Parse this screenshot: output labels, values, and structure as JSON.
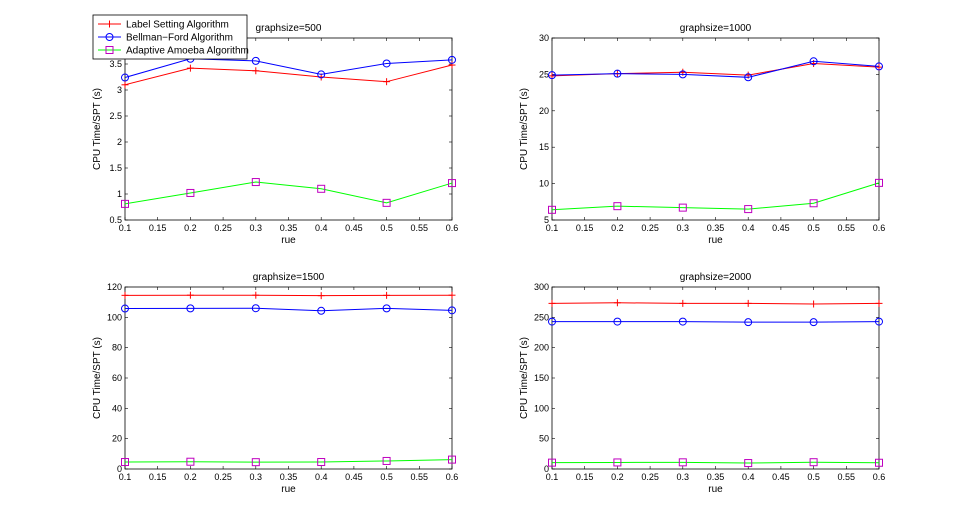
{
  "figure": {
    "legend": {
      "entries": [
        {
          "name": "Label Setting Algorithm",
          "color": "#ff0000",
          "marker": "plus"
        },
        {
          "name": "Bellman−Ford Algorithm",
          "color": "#0000ff",
          "marker": "circle"
        },
        {
          "name": "Adaptive Amoeba Algorithm",
          "color": "#00ff00",
          "marker": "square",
          "marker_color": "#bf00bf"
        }
      ],
      "placement": "top-left of first subplot"
    }
  },
  "chart_data": [
    {
      "type": "line",
      "title": "graphsize=500",
      "xlabel": "rue",
      "ylabel": "CPU Time/SPT (s)",
      "x": [
        0.1,
        0.2,
        0.3,
        0.4,
        0.5,
        0.6
      ],
      "xlim": [
        0.1,
        0.6
      ],
      "xticks": [
        "0.1",
        "0.15",
        "0.2",
        "0.25",
        "0.3",
        "0.35",
        "0.4",
        "0.45",
        "0.5",
        "0.55",
        "0.6"
      ],
      "ylim": [
        0.5,
        4
      ],
      "yticks": [
        "0.5",
        "1",
        "1.5",
        "2",
        "2.5",
        "3",
        "3.5"
      ],
      "series": [
        {
          "name": "Label Setting Algorithm",
          "values": [
            3.1,
            3.42,
            3.37,
            3.25,
            3.16,
            3.48
          ]
        },
        {
          "name": "Bellman−Ford Algorithm",
          "values": [
            3.24,
            3.6,
            3.56,
            3.3,
            3.51,
            3.58
          ]
        },
        {
          "name": "Adaptive Amoeba Algorithm",
          "values": [
            0.81,
            1.02,
            1.23,
            1.1,
            0.83,
            1.21
          ]
        }
      ]
    },
    {
      "type": "line",
      "title": "graphsize=1000",
      "xlabel": "rue",
      "ylabel": "CPU Time/SPT (s)",
      "x": [
        0.1,
        0.2,
        0.3,
        0.4,
        0.5,
        0.6
      ],
      "xlim": [
        0.1,
        0.6
      ],
      "xticks": [
        "0.1",
        "0.15",
        "0.2",
        "0.25",
        "0.3",
        "0.35",
        "0.4",
        "0.45",
        "0.5",
        "0.55",
        "0.6"
      ],
      "ylim": [
        5,
        30
      ],
      "yticks": [
        "5",
        "10",
        "15",
        "20",
        "25",
        "30"
      ],
      "series": [
        {
          "name": "Label Setting Algorithm",
          "values": [
            24.8,
            25.1,
            25.3,
            24.9,
            26.5,
            26.0
          ]
        },
        {
          "name": "Bellman−Ford Algorithm",
          "values": [
            24.9,
            25.1,
            25.0,
            24.6,
            26.8,
            26.1
          ]
        },
        {
          "name": "Adaptive Amoeba Algorithm",
          "values": [
            6.4,
            6.9,
            6.7,
            6.5,
            7.3,
            10.1
          ]
        }
      ]
    },
    {
      "type": "line",
      "title": "graphsize=1500",
      "xlabel": "rue",
      "ylabel": "CPU Time/SPT (s)",
      "x": [
        0.1,
        0.2,
        0.3,
        0.4,
        0.5,
        0.6
      ],
      "xlim": [
        0.1,
        0.6
      ],
      "xticks": [
        "0.1",
        "0.15",
        "0.2",
        "0.25",
        "0.3",
        "0.35",
        "0.4",
        "0.45",
        "0.5",
        "0.55",
        "0.6"
      ],
      "ylim": [
        0,
        120
      ],
      "yticks": [
        "0",
        "20",
        "40",
        "60",
        "80",
        "100",
        "120"
      ],
      "series": [
        {
          "name": "Label Setting Algorithm",
          "values": [
            114.5,
            114.6,
            114.6,
            114.3,
            114.5,
            114.6
          ]
        },
        {
          "name": "Bellman−Ford Algorithm",
          "values": [
            105.8,
            105.9,
            106.0,
            104.3,
            105.9,
            104.6
          ]
        },
        {
          "name": "Adaptive Amoeba Algorithm",
          "values": [
            4.6,
            4.8,
            4.5,
            4.6,
            5.3,
            6.2
          ]
        }
      ]
    },
    {
      "type": "line",
      "title": "graphsize=2000",
      "xlabel": "rue",
      "ylabel": "CPU Time/SPT (s)",
      "x": [
        0.1,
        0.2,
        0.3,
        0.4,
        0.5,
        0.6
      ],
      "xlim": [
        0.1,
        0.6
      ],
      "xticks": [
        "0.1",
        "0.15",
        "0.2",
        "0.25",
        "0.3",
        "0.35",
        "0.4",
        "0.45",
        "0.5",
        "0.55",
        "0.6"
      ],
      "ylim": [
        0,
        300
      ],
      "yticks": [
        "0",
        "50",
        "100",
        "150",
        "200",
        "250",
        "300"
      ],
      "series": [
        {
          "name": "Label Setting Algorithm",
          "values": [
            273,
            274,
            273,
            273,
            272,
            273
          ]
        },
        {
          "name": "Bellman−Ford Algorithm",
          "values": [
            243,
            243,
            243,
            242,
            242,
            243
          ]
        },
        {
          "name": "Adaptive Amoeba Algorithm",
          "values": [
            10.5,
            10.8,
            11.0,
            9.8,
            11.2,
            10.3
          ]
        }
      ]
    }
  ]
}
